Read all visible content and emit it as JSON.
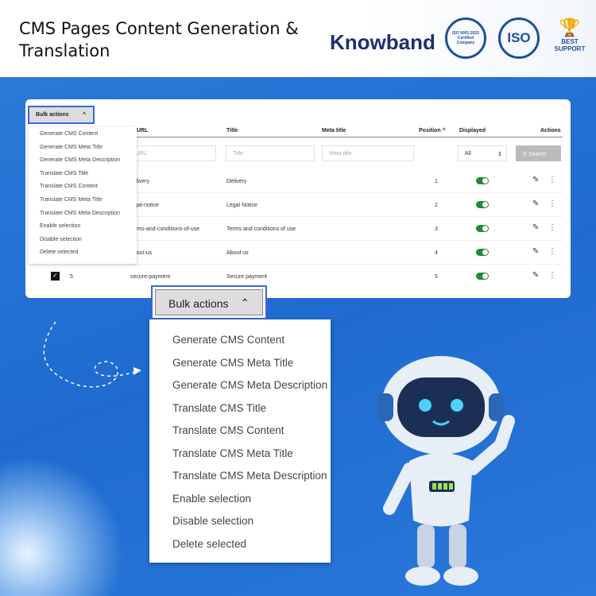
{
  "header": {
    "title": "CMS Pages Content Generation & Translation",
    "brand": "Knowband",
    "badges": [
      "ISO 9001:2015 Certified Company",
      "ISO",
      "BEST SUPPORT"
    ]
  },
  "table": {
    "columns": [
      "URL",
      "Title",
      "Meta title",
      "Position",
      "Displayed",
      "Actions"
    ],
    "filters": {
      "url_placeholder": "URL",
      "title_placeholder": "Title",
      "meta_placeholder": "Meta title",
      "displayed_value": "All",
      "search_label": "Search"
    },
    "rows": [
      {
        "url": "delivery",
        "title": "Delivery",
        "position": "1",
        "displayed": true
      },
      {
        "url": "legal-notice",
        "title": "Legal Notice",
        "position": "2",
        "displayed": true
      },
      {
        "url": "terms-and-conditions-of-use",
        "title": "Terms and conditions of use",
        "position": "3",
        "displayed": true
      },
      {
        "url": "about-us",
        "title": "About us",
        "position": "4",
        "displayed": true
      },
      {
        "id": "5",
        "url": "secure-payment",
        "title": "Secure payment",
        "position": "5",
        "displayed": true,
        "checked": true
      }
    ]
  },
  "bulk": {
    "label": "Bulk actions",
    "items": [
      "Generate CMS Content",
      "Generate CMS Meta Title",
      "Generate CMS Meta Description",
      "Translate CMS Title",
      "Translate CMS Content",
      "Translate CMS Meta Title",
      "Translate CMS Meta Description",
      "Enable selection",
      "Disable selection",
      "Delete selected"
    ]
  },
  "colors": {
    "accent": "#3d66d6",
    "toggle": "#1f8a3c",
    "background": "#2274d4"
  }
}
